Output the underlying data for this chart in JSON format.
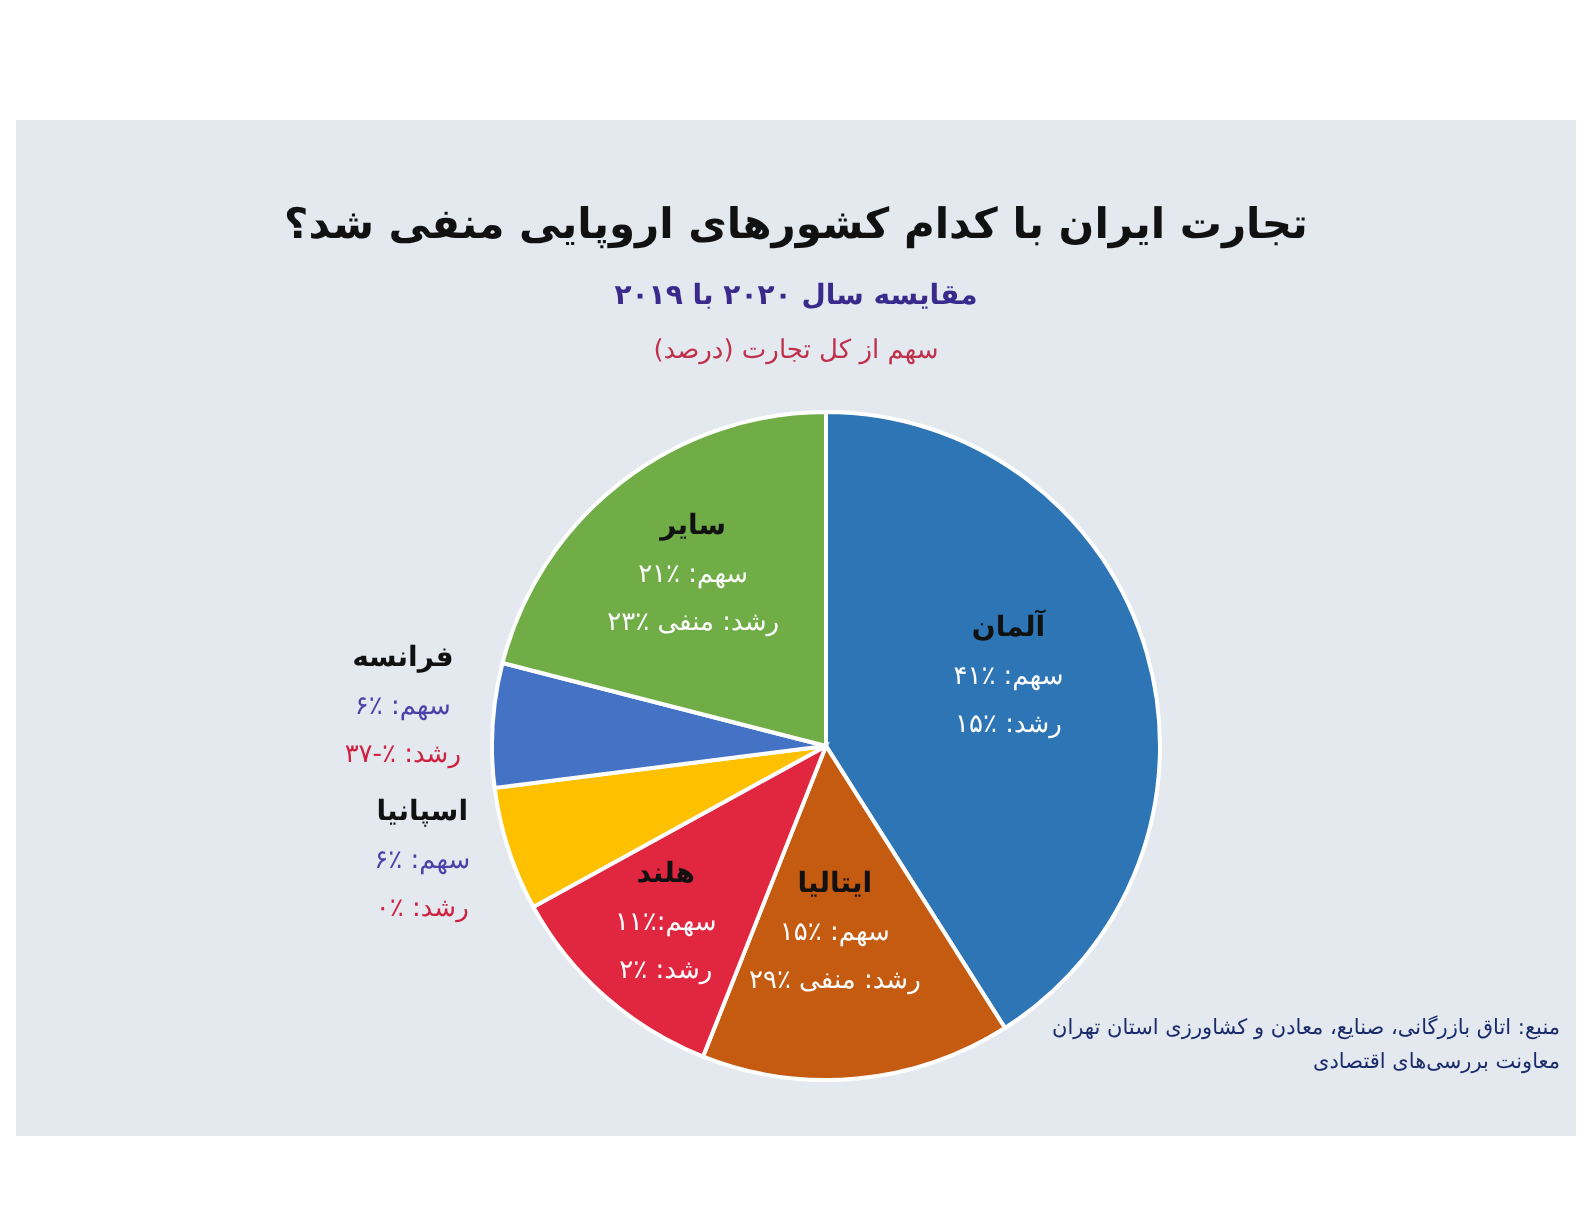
{
  "chart_data": {
    "type": "pie",
    "title": "تجارت ایران با کدام کشورهای اروپایی منفی شد؟",
    "subtitle": "مقایسه سال ۲۰۲۰ با ۲۰۱۹",
    "categories": [
      "آلمان",
      "ایتالیا",
      "هلند",
      "اسپانیا",
      "فرانسه",
      "سایر"
    ],
    "values": [
      41,
      15,
      11,
      6,
      6,
      21
    ],
    "colors": [
      "#2e75b6",
      "#c55a11",
      "#e0273f",
      "#ffc000",
      "#4472c4",
      "#70ad47"
    ],
    "value_labels": [
      "سهم: ٪۴۱",
      "سهم: ٪۱۵",
      "سهم:٪۱۱",
      "سهم: ٪۶",
      "سهم: ٪۶",
      "سهم: ٪۲۱"
    ],
    "annotations": [
      "سهم از کل تجارت (درصد)",
      "رشد: ٪۱۵",
      "رشد: منفی ٪۲۹",
      "رشد: ٪۲",
      "رشد: ٪۰",
      "رشد: ٪-۳۷",
      "رشد: منفی ٪۲۳",
      "منبع: اتاق بازرگانی، صنایع، معادن و کشاورزی استان تهران",
      "معاونت بررسی‌های اقتصادی"
    ]
  }
}
